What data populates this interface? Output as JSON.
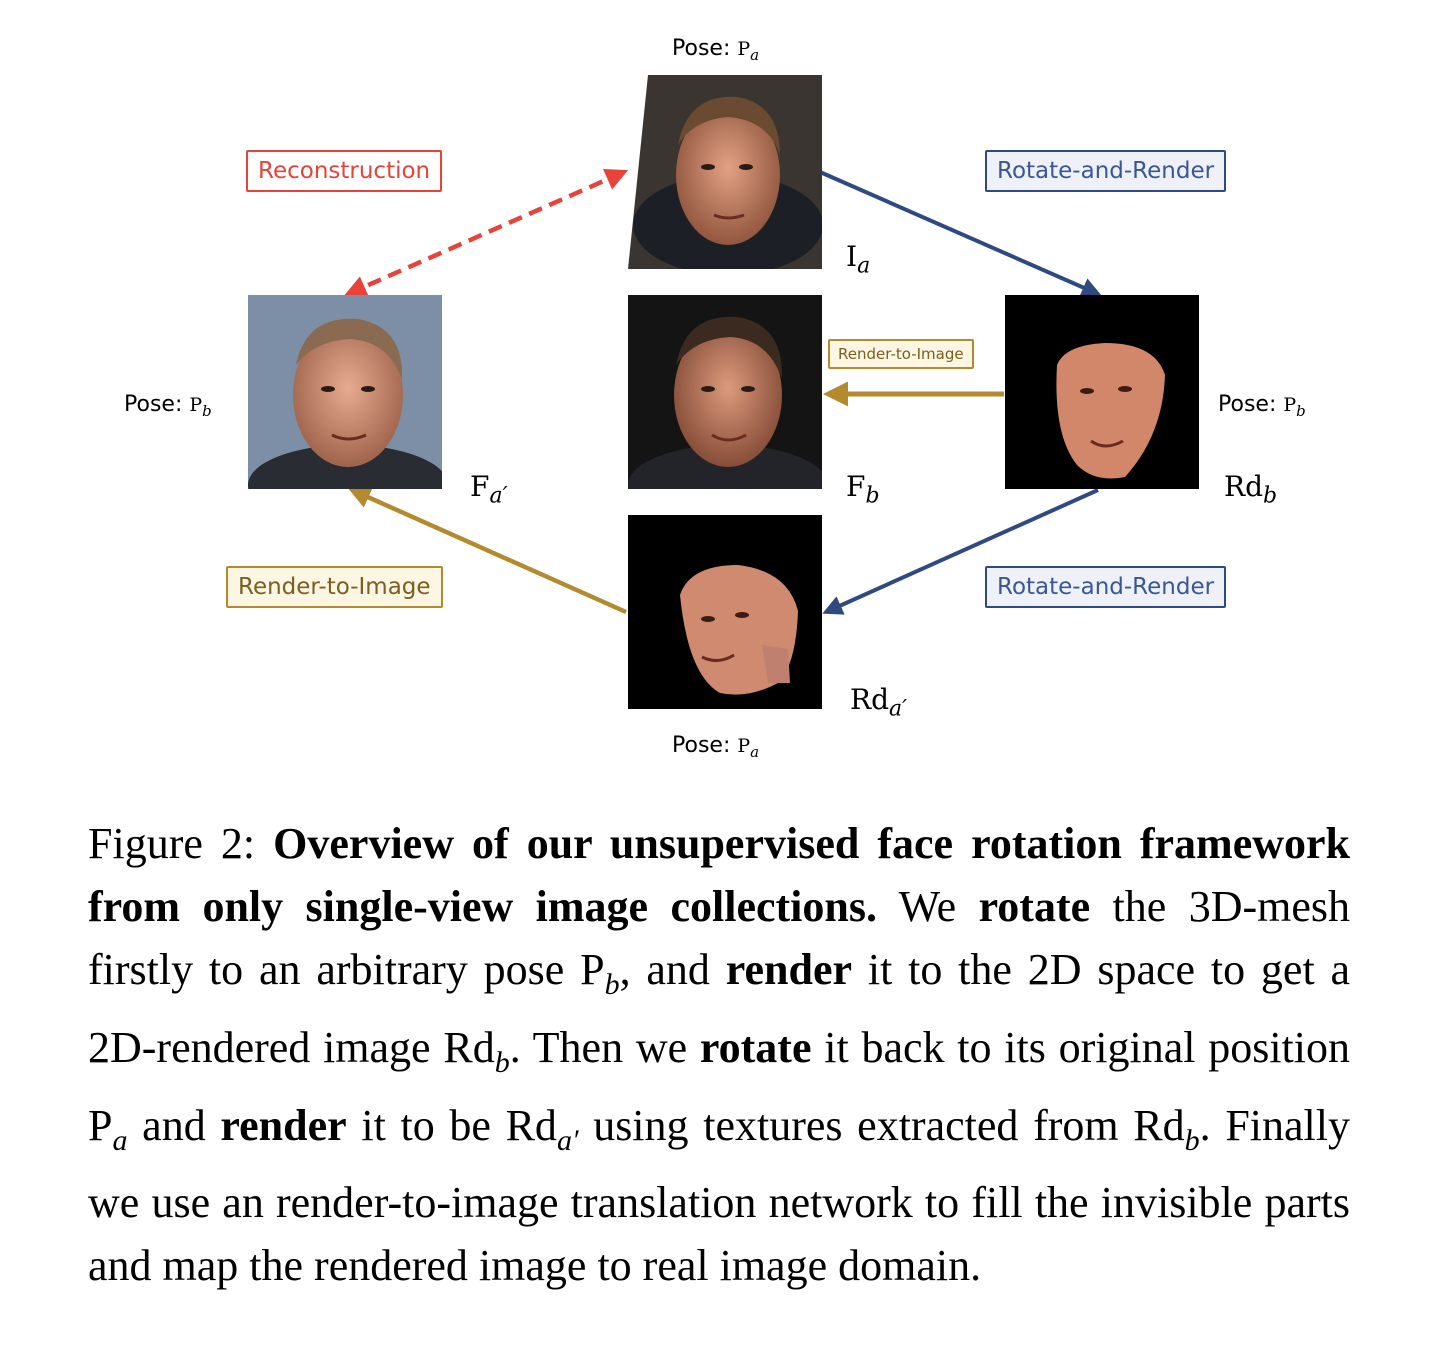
{
  "figure": {
    "pose_label": "Pose:",
    "pose_symbol": "P",
    "pose_a_sub": "a",
    "pose_b_sub": "b",
    "sym_I": "I",
    "sym_F": "F",
    "sym_Rd": "Rd",
    "sub_a": "a",
    "sub_b": "b",
    "prime": "′",
    "reconstruction": "Reconstruction",
    "rotate_and_render": "Rotate-and-Render",
    "render_to_image": "Render-to-Image",
    "colors": {
      "red": "#e8423a",
      "blue": "#2e4a80",
      "gold": "#b48a2f"
    }
  },
  "caption": {
    "prefix": "Figure 2:",
    "bold_title": "Overview of our unsupervised face rotation framework from only single-view image collections.",
    "t1": "We",
    "b_rotate1": "rotate",
    "t2": "the 3D-mesh firstly to an arbitrary pose P",
    "s_b1": "b",
    "t3": ", and",
    "b_render1": "render",
    "t4": "it to the 2D space to get a 2D-rendered image Rd",
    "s_b2": "b",
    "t5": ". Then we",
    "b_rotate2": "rotate",
    "t6": "it back to its original position P",
    "s_a1": "a",
    "t7": "and",
    "b_render2": "render",
    "t8": "it to be Rd",
    "s_a2": "a′",
    "t9": "using textures extracted from Rd",
    "s_b3": "b",
    "t10": ". Finally we use an render-to-image translation network to fill the invisible parts and map the rendered image to real image domain."
  }
}
